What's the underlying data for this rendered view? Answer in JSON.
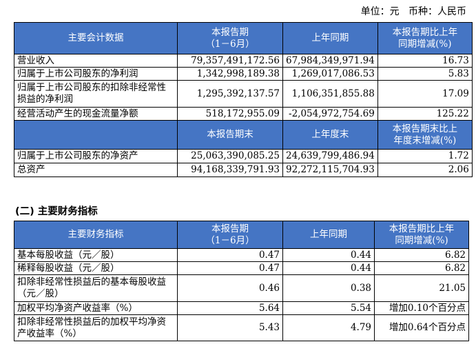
{
  "unit_line": "单位：元   币种：人民币",
  "section_title": "(二) 主要财务指标",
  "table1": {
    "headers": [
      "主要会计数据",
      "本报告期\n（1－6月）",
      "上年同期",
      "本报告期比上年\n同期增减(%)"
    ],
    "rows": [
      [
        "营业收入",
        "79,357,491,172.56",
        "67,984,349,971.94",
        "16.73"
      ],
      [
        "归属于上市公司股东的净利润",
        "1,342,998,189.38",
        "1,269,017,086.53",
        "5.83"
      ],
      [
        "归属于上市公司股东的扣除非经常性损益的净利润",
        "1,295,392,137.57",
        "1,106,351,855.88",
        "17.09"
      ],
      [
        "经营活动产生的现金流量净额",
        "518,172,955.09",
        "-2,054,972,754.69",
        "125.22"
      ]
    ],
    "headers2": [
      "",
      "本报告期末",
      "上年度末",
      "本报告期末比上\n年度末增减(%)"
    ],
    "rows2": [
      [
        "归属于上市公司股东的净资产",
        "25,063,390,085.25",
        "24,639,799,486.94",
        "1.72"
      ],
      [
        "总资产",
        "94,168,339,791.93",
        "92,272,115,704.93",
        "2.06"
      ]
    ]
  },
  "table2": {
    "headers": [
      "主要财务指标",
      "本报告期\n（1－6月）",
      "上年同期",
      "本报告期比上年\n同期增减(%)"
    ],
    "rows": [
      [
        "基本每股收益（元／股）",
        "0.47",
        "0.44",
        "6.82"
      ],
      [
        "稀释每股收益（元／股）",
        "0.47",
        "0.44",
        "6.82"
      ],
      [
        "扣除非经常性损益后的基本每股收益（元／股）",
        "0.46",
        "0.38",
        "21.05"
      ],
      [
        "加权平均净资产收益率（%）",
        "5.64",
        "5.54",
        "增加0.10个百分点"
      ],
      [
        "扣除非经常性损益后的加权平均净资产收益率（%）",
        "5.43",
        "4.79",
        "增加0.64个百分点"
      ]
    ]
  },
  "colors": {
    "header_bg": "#4575c4",
    "header_text": "#ffffff"
  }
}
